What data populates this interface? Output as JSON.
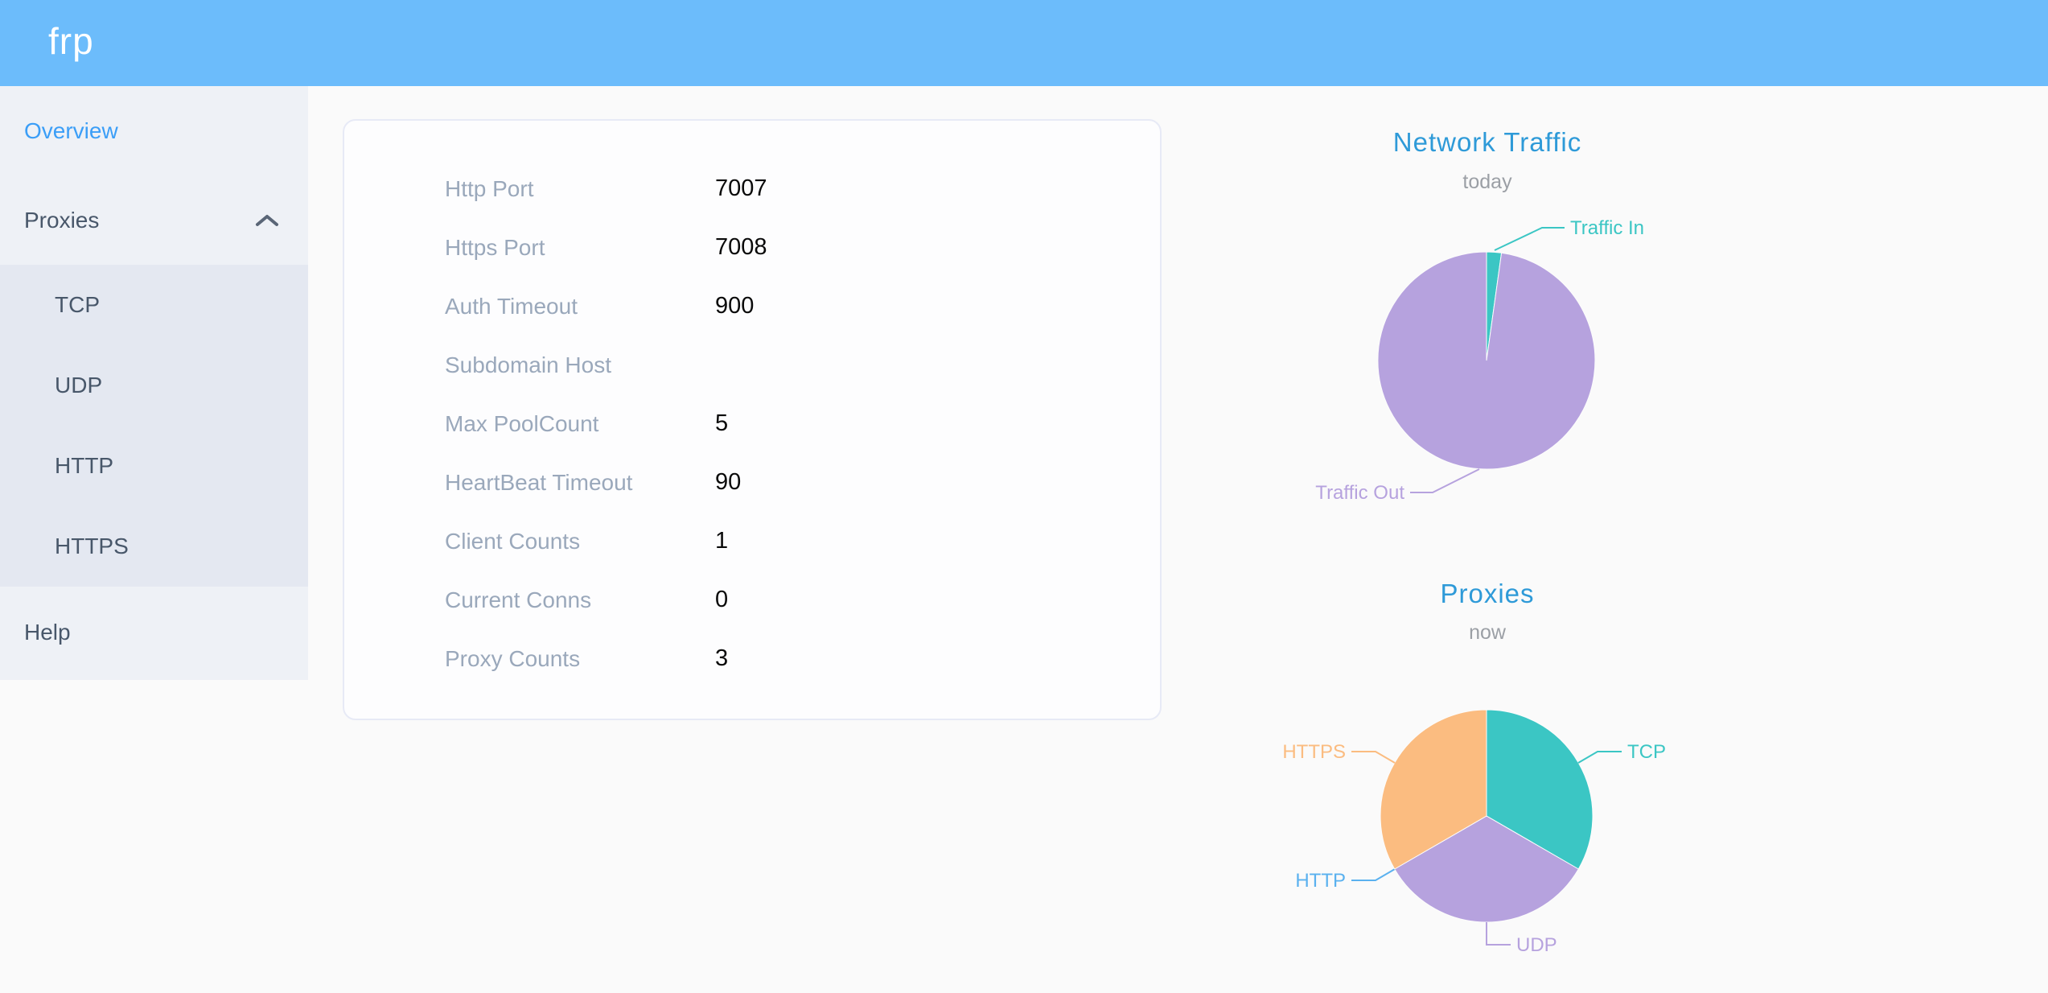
{
  "header": {
    "logo": "frp"
  },
  "sidebar": {
    "overview": "Overview",
    "proxies": "Proxies",
    "submenu": [
      "TCP",
      "UDP",
      "HTTP",
      "HTTPS"
    ],
    "help": "Help"
  },
  "server_info": {
    "rows": [
      {
        "label": "Http Port",
        "value": "7007"
      },
      {
        "label": "Https Port",
        "value": "7008"
      },
      {
        "label": "Auth Timeout",
        "value": "900"
      },
      {
        "label": "Subdomain Host",
        "value": ""
      },
      {
        "label": "Max PoolCount",
        "value": "5"
      },
      {
        "label": "HeartBeat Timeout",
        "value": "90"
      },
      {
        "label": "Client Counts",
        "value": "1"
      },
      {
        "label": "Current Conns",
        "value": "0"
      },
      {
        "label": "Proxy Counts",
        "value": "3"
      }
    ]
  },
  "chart_data": [
    {
      "type": "pie",
      "title": "Network Traffic",
      "subtitle": "today",
      "legend_position": "none",
      "slices": [
        {
          "label": "Traffic In",
          "value": 2.2,
          "color": "#3bc6c4"
        },
        {
          "label": "Traffic Out",
          "value": 97.8,
          "color": "#b6a2de"
        }
      ]
    },
    {
      "type": "pie",
      "title": "Proxies",
      "subtitle": "now",
      "legend_position": "none",
      "slices": [
        {
          "label": "TCP",
          "value": 1,
          "color": "#3bc6c4"
        },
        {
          "label": "UDP",
          "value": 1,
          "color": "#b6a2de"
        },
        {
          "label": "HTTP",
          "value": 0,
          "color": "#5ab1ef"
        },
        {
          "label": "HTTPS",
          "value": 1,
          "color": "#fbbc80"
        }
      ]
    }
  ],
  "colors": {
    "header_bg": "#6cbcfb",
    "logo_text": "#ffffff",
    "sidebar_bg": "#eef1f6",
    "submenu_bg": "#e4e8f1",
    "menu_text": "#48576a",
    "active_menu_text": "#3b9ef7",
    "chevron": "#5a6677",
    "card_border": "#e7eaf6",
    "info_label": "#9aa8bb",
    "info_value": "#0a0a0a",
    "chart_title": "#2e9ad8",
    "chart_subtitle": "#9b9fa5",
    "page_bg": "#fafafa"
  }
}
